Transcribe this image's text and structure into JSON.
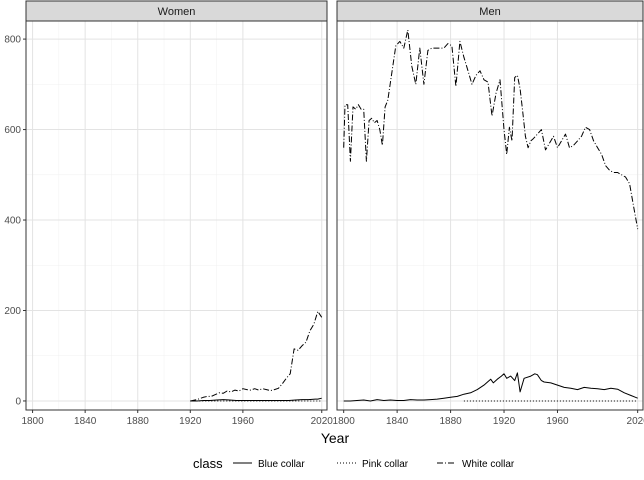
{
  "chart_data": {
    "type": "line",
    "xlabel": "Year",
    "ylabel": "",
    "xlim": [
      1795,
      2024
    ],
    "ylim": [
      -20,
      840
    ],
    "x_ticks": [
      1800,
      1840,
      1880,
      1920,
      1960,
      2020
    ],
    "y_ticks": [
      0,
      200,
      400,
      600,
      800
    ],
    "grid": true,
    "legend": {
      "title": "class",
      "position": "bottom",
      "entries": [
        {
          "key": "blue",
          "label": "Blue collar",
          "dash": "solid"
        },
        {
          "key": "pink",
          "label": "Pink collar",
          "dash": "dotted"
        },
        {
          "key": "white",
          "label": "White collar",
          "dash": "dashdot"
        }
      ]
    },
    "panels": [
      {
        "title": "Women",
        "series": [
          {
            "key": "blue",
            "x": [
              1920,
              1925,
              1930,
              1935,
              1940,
              1945,
              1950,
              1955,
              1960,
              1965,
              1970,
              1975,
              1980,
              1985,
              1990,
              1995,
              2000,
              2005,
              2010,
              2015,
              2017,
              2020
            ],
            "y": [
              0,
              0,
              1,
              1,
              2,
              3,
              2,
              1,
              1,
              1,
              1,
              1,
              1,
              1,
              1,
              1,
              2,
              3,
              3,
              4,
              4,
              6
            ]
          },
          {
            "key": "pink",
            "x": [
              1920,
              1930,
              1940,
              1950,
              1960,
              1970,
              1980,
              1990,
              2000,
              2010,
              2020
            ],
            "y": [
              0,
              0,
              0,
              0,
              0,
              0,
              0,
              0,
              0,
              0,
              0
            ]
          },
          {
            "key": "white",
            "x": [
              1920,
              1925,
              1927,
              1930,
              1933,
              1936,
              1939,
              1942,
              1945,
              1948,
              1951,
              1954,
              1957,
              1960,
              1963,
              1966,
              1969,
              1972,
              1975,
              1978,
              1981,
              1984,
              1987,
              1990,
              1993,
              1996,
              1999,
              2002,
              2005,
              2008,
              2011,
              2014,
              2017,
              2020
            ],
            "y": [
              0,
              3,
              5,
              8,
              10,
              10,
              14,
              18,
              17,
              22,
              20,
              24,
              22,
              27,
              25,
              24,
              27,
              24,
              27,
              25,
              23,
              25,
              28,
              38,
              50,
              60,
              115,
              112,
              122,
              130,
              155,
              170,
              198,
              185
            ]
          }
        ]
      },
      {
        "title": "Men",
        "series": [
          {
            "key": "blue",
            "x": [
              1800,
              1805,
              1810,
              1815,
              1820,
              1825,
              1830,
              1835,
              1840,
              1845,
              1850,
              1855,
              1860,
              1865,
              1870,
              1875,
              1880,
              1885,
              1890,
              1895,
              1900,
              1905,
              1910,
              1912,
              1915,
              1918,
              1920,
              1922,
              1925,
              1928,
              1930,
              1932,
              1935,
              1940,
              1943,
              1945,
              1948,
              1950,
              1955,
              1960,
              1965,
              1970,
              1975,
              1980,
              1985,
              1990,
              1995,
              2000,
              2005,
              2010,
              2015,
              2020
            ],
            "y": [
              0,
              0,
              1,
              2,
              0,
              3,
              1,
              2,
              1,
              1,
              3,
              2,
              2,
              3,
              4,
              6,
              8,
              10,
              15,
              18,
              25,
              35,
              48,
              40,
              48,
              55,
              60,
              50,
              55,
              45,
              62,
              20,
              50,
              55,
              60,
              58,
              45,
              42,
              40,
              35,
              30,
              28,
              25,
              30,
              28,
              27,
              25,
              28,
              26,
              18,
              12,
              6
            ]
          },
          {
            "key": "pink",
            "x": [
              1890,
              1900,
              1910,
              1920,
              1930,
              1940,
              1950,
              1960,
              1970,
              1980,
              1990,
              2000,
              2010,
              2020
            ],
            "y": [
              0,
              0,
              0,
              0,
              0,
              0,
              0,
              0,
              0,
              0,
              0,
              0,
              0,
              0
            ]
          },
          {
            "key": "white",
            "x": [
              1800,
              1801,
              1803,
              1805,
              1807,
              1809,
              1811,
              1813,
              1815,
              1817,
              1819,
              1821,
              1823,
              1825,
              1827,
              1829,
              1831,
              1833,
              1836,
              1839,
              1842,
              1845,
              1848,
              1851,
              1854,
              1857,
              1860,
              1863,
              1866,
              1869,
              1872,
              1875,
              1878,
              1881,
              1884,
              1887,
              1890,
              1893,
              1896,
              1899,
              1902,
              1905,
              1908,
              1911,
              1914,
              1917,
              1920,
              1922,
              1924,
              1926,
              1928,
              1930,
              1932,
              1934,
              1936,
              1938,
              1940,
              1942,
              1945,
              1948,
              1951,
              1954,
              1957,
              1960,
              1963,
              1966,
              1969,
              1972,
              1975,
              1978,
              1981,
              1984,
              1987,
              1990,
              1993,
              1996,
              1999,
              2002,
              2005,
              2008,
              2011,
              2014,
              2017,
              2020
            ],
            "y": [
              560,
              655,
              655,
              530,
              650,
              645,
              655,
              645,
              645,
              530,
              620,
              625,
              615,
              620,
              600,
              565,
              650,
              665,
              725,
              785,
              795,
              780,
              820,
              740,
              700,
              780,
              700,
              775,
              780,
              780,
              780,
              780,
              790,
              785,
              695,
              795,
              760,
              730,
              700,
              720,
              730,
              710,
              705,
              630,
              680,
              710,
              600,
              545,
              605,
              575,
              715,
              720,
              690,
              640,
              585,
              560,
              575,
              580,
              590,
              600,
              555,
              570,
              585,
              560,
              575,
              590,
              560,
              565,
              575,
              585,
              605,
              600,
              575,
              560,
              545,
              520,
              510,
              505,
              505,
              500,
              495,
              480,
              430,
              380
            ]
          }
        ]
      }
    ]
  }
}
